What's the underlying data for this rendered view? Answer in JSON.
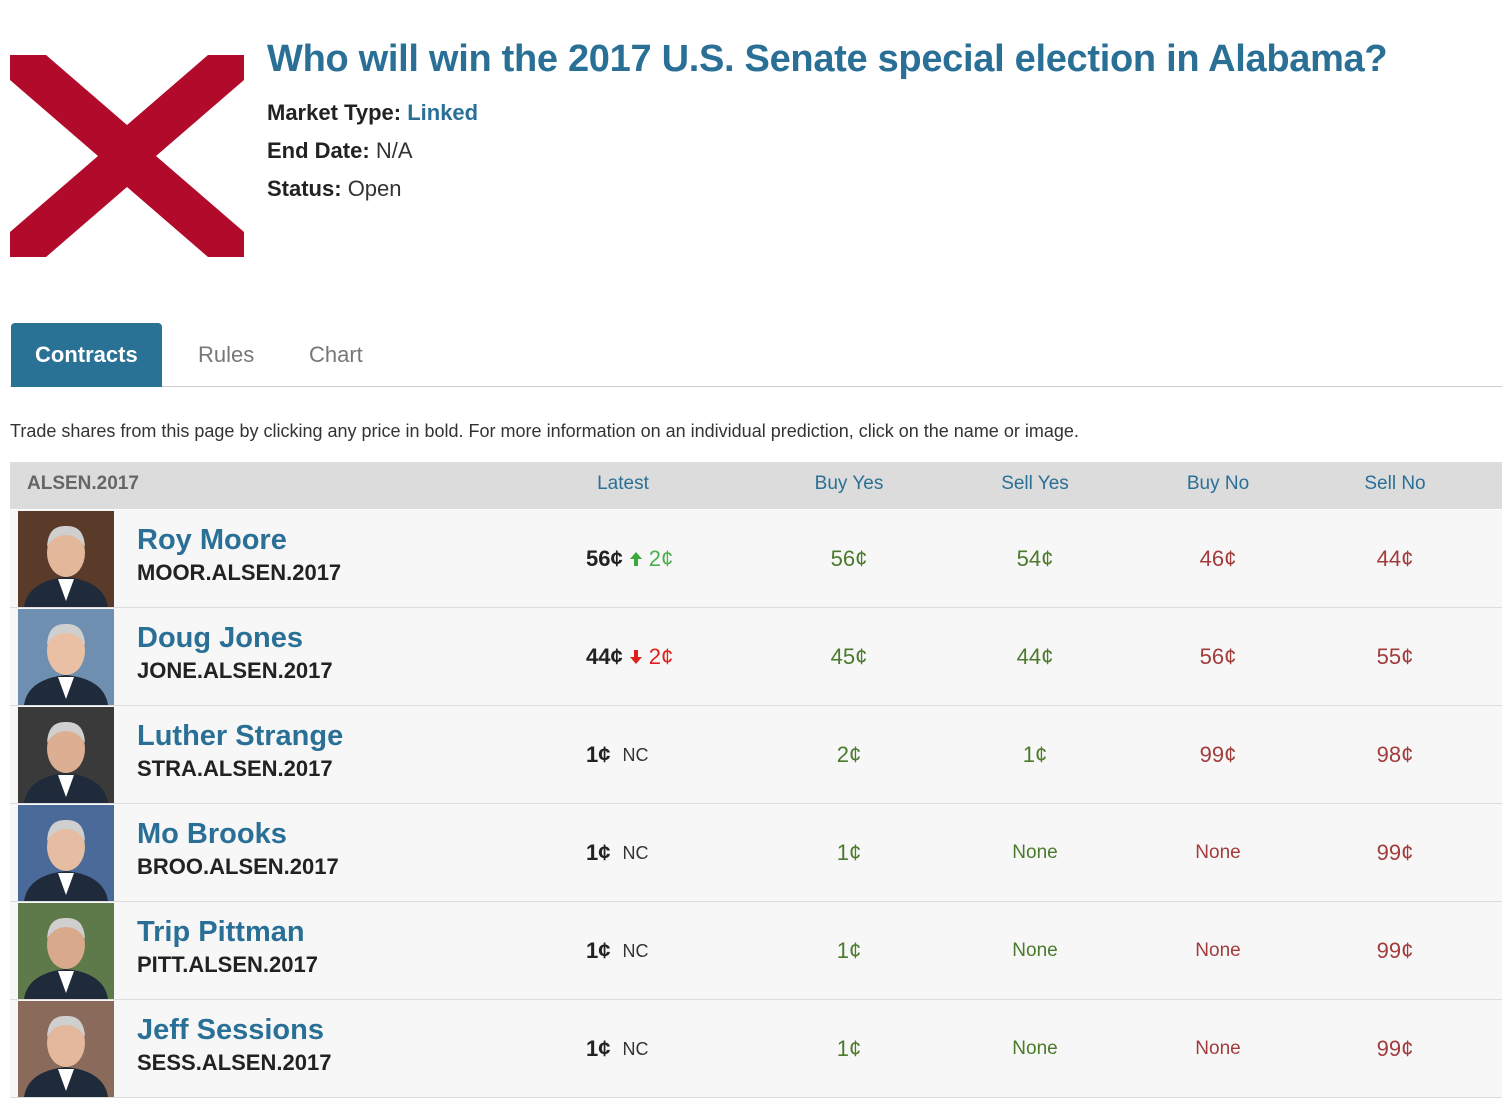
{
  "header": {
    "title": "Who will win the 2017 U.S. Senate special election in Alabama?",
    "market_type_label": "Market Type:",
    "market_type": "Linked",
    "end_date_label": "End Date:",
    "end_date": "N/A",
    "status_label": "Status:",
    "status": "Open"
  },
  "tabs": {
    "items": [
      "Contracts",
      "Rules",
      "Chart"
    ],
    "active": 0
  },
  "instructions": "Trade shares from this page by clicking any price in bold. For more information on an individual prediction, click on the name or image.",
  "table": {
    "columns": [
      "ALSEN.2017",
      "Latest",
      "Buy Yes",
      "Sell Yes",
      "Buy No",
      "Sell No"
    ],
    "rows": [
      {
        "name": "Roy Moore",
        "ticker": "MOOR.ALSEN.2017",
        "latest": "56¢",
        "trend": "up",
        "change": "2¢",
        "buy_yes": "56¢",
        "sell_yes": "54¢",
        "buy_no": "46¢",
        "sell_no": "44¢"
      },
      {
        "name": "Doug Jones",
        "ticker": "JONE.ALSEN.2017",
        "latest": "44¢",
        "trend": "down",
        "change": "2¢",
        "buy_yes": "45¢",
        "sell_yes": "44¢",
        "buy_no": "56¢",
        "sell_no": "55¢"
      },
      {
        "name": "Luther Strange",
        "ticker": "STRA.ALSEN.2017",
        "latest": "1¢",
        "trend": "flat",
        "change": "NC",
        "buy_yes": "2¢",
        "sell_yes": "1¢",
        "buy_no": "99¢",
        "sell_no": "98¢"
      },
      {
        "name": "Mo Brooks",
        "ticker": "BROO.ALSEN.2017",
        "latest": "1¢",
        "trend": "flat",
        "change": "NC",
        "buy_yes": "1¢",
        "sell_yes": "None",
        "buy_no": "None",
        "sell_no": "99¢"
      },
      {
        "name": "Trip Pittman",
        "ticker": "PITT.ALSEN.2017",
        "latest": "1¢",
        "trend": "flat",
        "change": "NC",
        "buy_yes": "1¢",
        "sell_yes": "None",
        "buy_no": "None",
        "sell_no": "99¢"
      },
      {
        "name": "Jeff Sessions",
        "ticker": "SESS.ALSEN.2017",
        "latest": "1¢",
        "trend": "flat",
        "change": "NC",
        "buy_yes": "1¢",
        "sell_yes": "None",
        "buy_no": "None",
        "sell_no": "99¢"
      }
    ]
  }
}
